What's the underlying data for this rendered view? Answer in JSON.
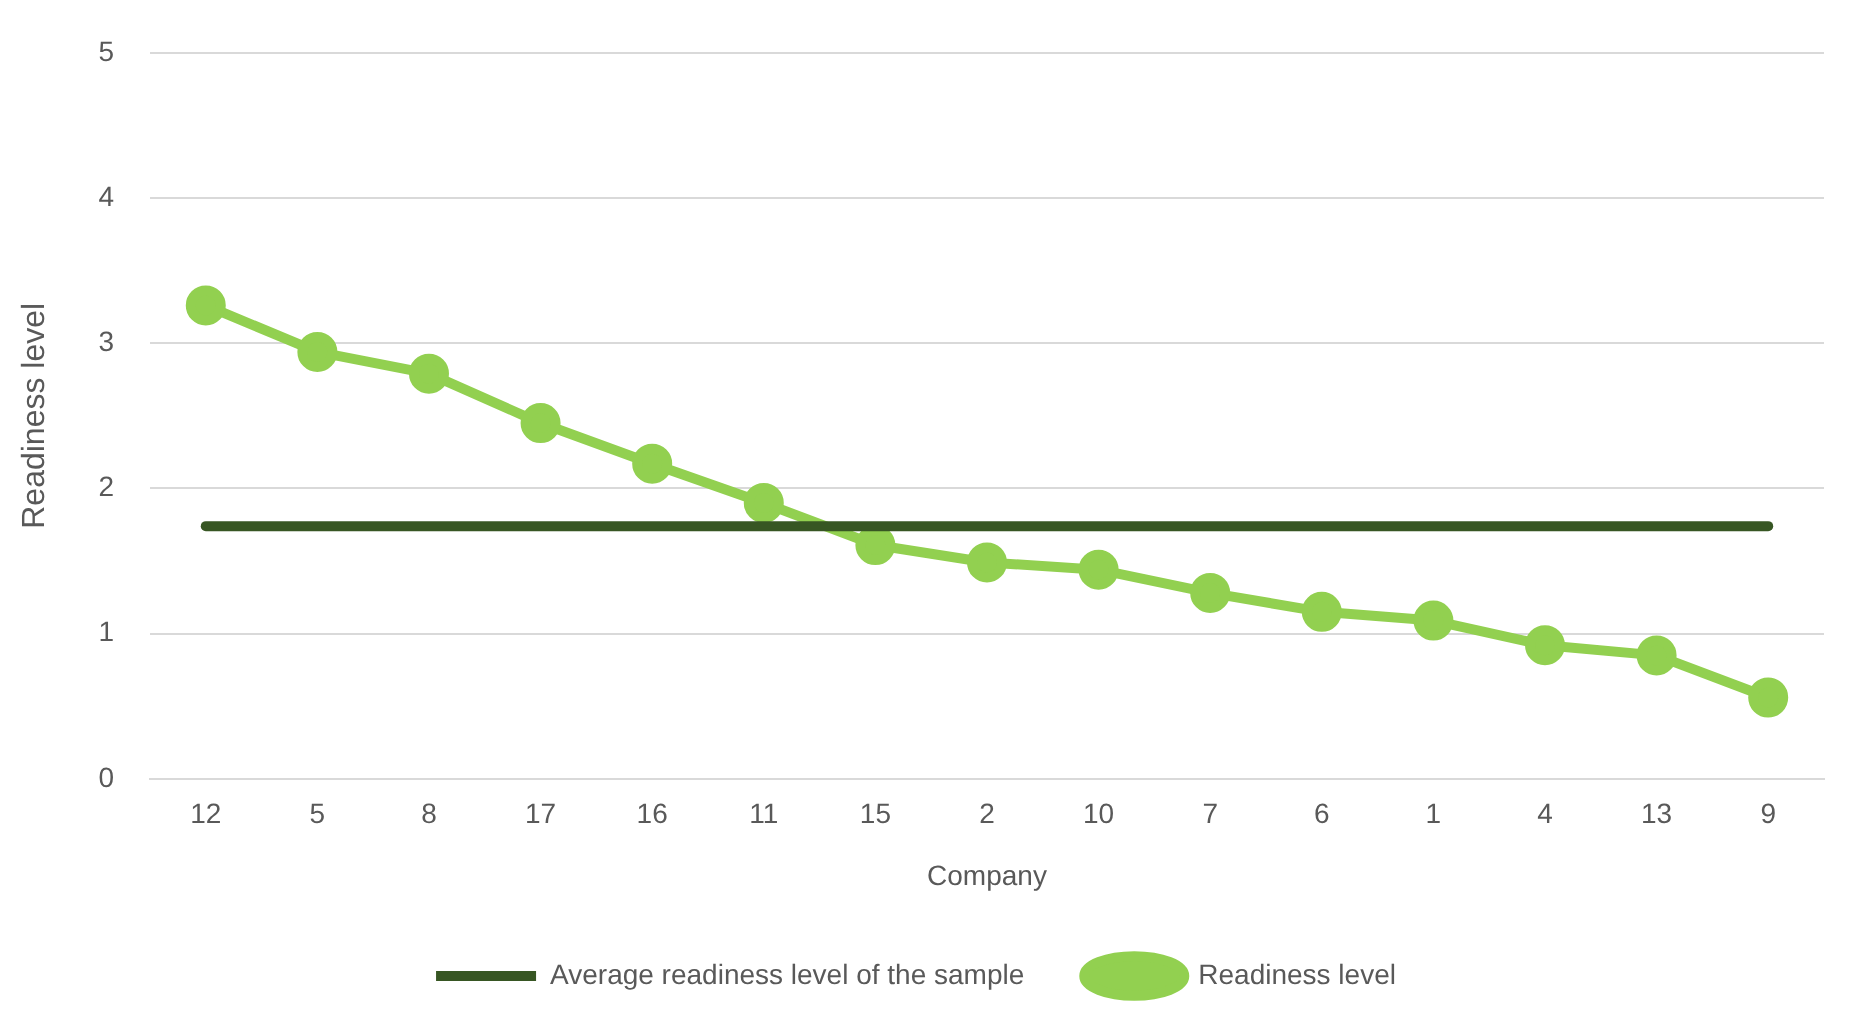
{
  "chart_data": {
    "type": "line",
    "xlabel": "Company",
    "ylabel": "Readiness level",
    "categories": [
      "12",
      "5",
      "8",
      "17",
      "16",
      "11",
      "15",
      "2",
      "10",
      "7",
      "6",
      "1",
      "4",
      "13",
      "9"
    ],
    "series": [
      {
        "name": "Average readiness level of the sample",
        "color": "#375623",
        "marker": "none",
        "values": [
          1.74,
          1.74,
          1.74,
          1.74,
          1.74,
          1.74,
          1.74,
          1.74,
          1.74,
          1.74,
          1.74,
          1.74,
          1.74,
          1.74,
          1.74
        ]
      },
      {
        "name": "Readiness level",
        "color": "#92d050",
        "marker": "circle",
        "values": [
          3.26,
          2.94,
          2.79,
          2.45,
          2.17,
          1.9,
          1.61,
          1.49,
          1.44,
          1.28,
          1.15,
          1.09,
          0.92,
          0.85,
          0.56
        ]
      }
    ],
    "ylim": [
      0,
      5
    ],
    "yticks": [
      0,
      1,
      2,
      3,
      4,
      5
    ],
    "grid": "y",
    "legend": "bottom"
  }
}
